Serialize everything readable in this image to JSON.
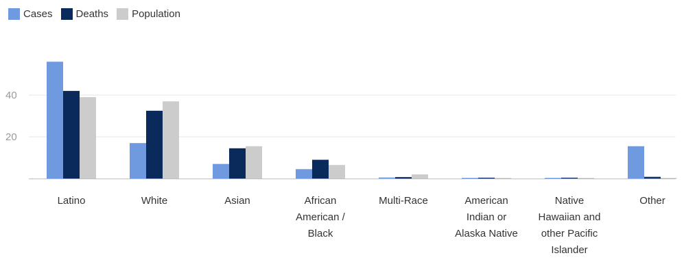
{
  "legend": [
    {
      "label": "Cases",
      "color": "#6f9ae0"
    },
    {
      "label": "Deaths",
      "color": "#0b2a5c"
    },
    {
      "label": "Population",
      "color": "#cccccc"
    }
  ],
  "chart_data": {
    "type": "bar",
    "title": "",
    "xlabel": "",
    "ylabel": "",
    "ylim": [
      0,
      60
    ],
    "yticks": [
      20,
      40
    ],
    "grid": true,
    "legend_position": "top-left",
    "categories": [
      "Latino",
      "White",
      "Asian",
      "African American / Black",
      "Multi-Race",
      "American Indian or Alaska Native",
      "Native Hawaiian and other Pacific Islander",
      "Other"
    ],
    "category_label_lines": [
      [
        "Latino"
      ],
      [
        "White"
      ],
      [
        "Asian"
      ],
      [
        "African",
        "American /",
        "Black"
      ],
      [
        "Multi-Race"
      ],
      [
        "American",
        "Indian or",
        "Alaska Native"
      ],
      [
        "Native",
        "Hawaiian and",
        "other Pacific",
        "Islander"
      ],
      [
        "Other"
      ]
    ],
    "series": [
      {
        "name": "Cases",
        "color": "#6f9ae0",
        "values": [
          56,
          17,
          7,
          4.5,
          0.5,
          0.2,
          0.3,
          15.5
        ]
      },
      {
        "name": "Deaths",
        "color": "#0b2a5c",
        "values": [
          42,
          32.5,
          14.5,
          9,
          0.7,
          0.4,
          0.4,
          0.8
        ]
      },
      {
        "name": "Population",
        "color": "#cccccc",
        "values": [
          39,
          37,
          15.5,
          6.5,
          2,
          0.3,
          0.3,
          0.2
        ]
      }
    ]
  }
}
